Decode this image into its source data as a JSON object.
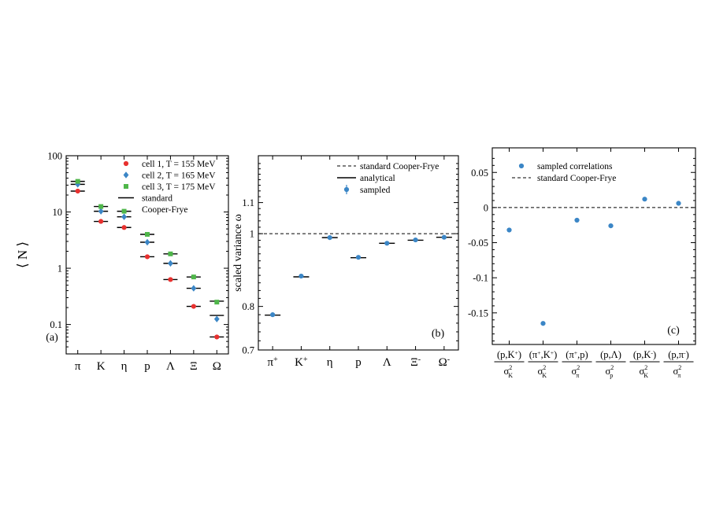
{
  "chart_data": [
    {
      "type": "scatter",
      "panel_label": "(a)",
      "ylabel": "⟨ N ⟩",
      "yscale": "log",
      "ylim": [
        0.03,
        100
      ],
      "yticks": [
        "0.1",
        "1",
        "10",
        "100"
      ],
      "categories": [
        "π",
        "K",
        "η",
        "p",
        "Λ",
        "Ξ",
        "Ω"
      ],
      "legend_position": "top-right",
      "series": [
        {
          "name": "cell 1, T = 155 MeV",
          "marker": "circle",
          "color": "#e8312f",
          "values": [
            23.5,
            6.8,
            5.3,
            1.6,
            0.63,
            0.21,
            0.06
          ]
        },
        {
          "name": "cell 2, T = 165 MeV",
          "marker": "diamond",
          "color": "#3b86c6",
          "values": [
            31,
            10.3,
            8.2,
            2.9,
            1.22,
            0.44,
            0.125
          ]
        },
        {
          "name": "cell 3, T = 175 MeV",
          "marker": "square",
          "color": "#4fb64a",
          "values": [
            35,
            12.5,
            10.3,
            4.0,
            1.8,
            0.7,
            0.25
          ]
        }
      ],
      "reference": {
        "name_lines": [
          "standard",
          "Cooper-Frye"
        ],
        "values": [
          [
            23.5,
            31,
            35
          ],
          [
            6.8,
            10.3,
            12.5
          ],
          [
            5.3,
            8.2,
            10.3
          ],
          [
            1.6,
            2.9,
            4.0
          ],
          [
            0.63,
            1.22,
            1.8
          ],
          [
            0.21,
            0.44,
            0.7
          ],
          [
            0.06,
            0.145,
            0.26
          ]
        ]
      }
    },
    {
      "type": "scatter",
      "panel_label": "(b)",
      "ylabel": "scaled variance ω",
      "yscale": "log",
      "ylim": [
        0.7,
        1.27
      ],
      "yticks": [
        "0.7",
        "0.8",
        "1",
        "1.1"
      ],
      "categories": [
        {
          "base": "π",
          "sup": "+"
        },
        {
          "base": "K",
          "sup": "+"
        },
        {
          "base": "η",
          "sup": ""
        },
        {
          "base": "p",
          "sup": ""
        },
        {
          "base": "Λ",
          "sup": ""
        },
        {
          "base": "Ξ",
          "sup": "-"
        },
        {
          "base": "Ω",
          "sup": "-"
        }
      ],
      "legend_position": "top-right",
      "legend": [
        "standard Cooper-Frye",
        "analytical",
        "sampled"
      ],
      "standard_cooper_frye": 1.0,
      "analytical": [
        0.779,
        0.876,
        0.988,
        0.929,
        0.971,
        0.98,
        0.989
      ],
      "sampled": [
        0.78,
        0.878,
        0.988,
        0.93,
        0.971,
        0.981,
        0.989
      ],
      "marker_color": "#3b86c6"
    },
    {
      "type": "scatter",
      "panel_label": "(c)",
      "ylim": [
        -0.195,
        0.085
      ],
      "yticks": [
        "-0.15",
        "-0.1",
        "-0.05",
        "0",
        "0.05"
      ],
      "legend_position": "top",
      "legend": [
        "sampled correlations",
        "standard Cooper-Frye"
      ],
      "standard_cooper_frye": 0,
      "categories": [
        {
          "num": [
            "(p,K",
            "+",
            ")"
          ],
          "den": [
            "σ",
            "2",
            "K"
          ]
        },
        {
          "num": [
            "(π",
            "+",
            ",K",
            "+",
            ")"
          ],
          "den": [
            "σ",
            "2",
            "K"
          ]
        },
        {
          "num": [
            "(π",
            "+",
            ",p)"
          ],
          "den": [
            "σ",
            "2",
            "π"
          ]
        },
        {
          "num": [
            "(p,Λ)"
          ],
          "den": [
            "σ",
            "2",
            "p"
          ]
        },
        {
          "num": [
            "(p,K",
            "-",
            ")"
          ],
          "den": [
            "σ",
            "2",
            "K"
          ]
        },
        {
          "num": [
            "(p,π",
            "-",
            ")"
          ],
          "den": [
            "σ",
            "2",
            "π"
          ]
        }
      ],
      "values": [
        -0.032,
        -0.165,
        -0.018,
        -0.026,
        0.012,
        0.006
      ],
      "marker_color": "#3b86c6"
    }
  ]
}
